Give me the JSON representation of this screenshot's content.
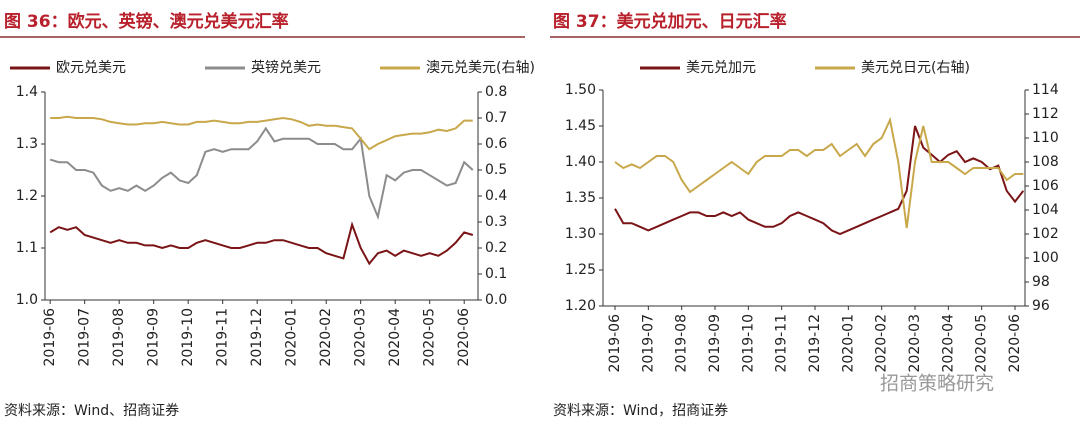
{
  "chart_data": [
    {
      "type": "line",
      "title": "图 36：欧元、英镑、澳元兑美元汇率",
      "source": "资料来源：Wind、招商证券",
      "x": [
        0,
        0.25,
        0.5,
        0.75,
        1,
        1.25,
        1.5,
        1.75,
        2,
        2.25,
        2.5,
        2.75,
        3,
        3.25,
        3.5,
        3.75,
        4,
        4.25,
        4.5,
        4.75,
        5,
        5.25,
        5.5,
        5.75,
        6,
        6.25,
        6.5,
        6.75,
        7,
        7.25,
        7.5,
        7.75,
        8,
        8.25,
        8.5,
        8.75,
        9,
        9.25,
        9.5,
        9.75,
        10,
        10.25,
        10.5,
        10.75,
        11,
        11.25,
        11.5,
        11.75,
        12,
        12.25
      ],
      "xlim": [
        -0.15,
        12.4
      ],
      "xticks": [
        {
          "value": 0,
          "label": "2019-06"
        },
        {
          "value": 1,
          "label": "2019-07"
        },
        {
          "value": 2,
          "label": "2019-08"
        },
        {
          "value": 3,
          "label": "2019-09"
        },
        {
          "value": 4,
          "label": "2019-10"
        },
        {
          "value": 5,
          "label": "2019-11"
        },
        {
          "value": 6,
          "label": "2019-12"
        },
        {
          "value": 7,
          "label": "2020-01"
        },
        {
          "value": 8,
          "label": "2020-02"
        },
        {
          "value": 9,
          "label": "2020-03"
        },
        {
          "value": 10,
          "label": "2020-04"
        },
        {
          "value": 11,
          "label": "2020-05"
        },
        {
          "value": 12,
          "label": "2020-06"
        }
      ],
      "ylim": [
        1.0,
        1.4
      ],
      "yticks": [
        {
          "value": 1.0,
          "label": "1.0"
        },
        1.1,
        1.2,
        1.3,
        1.4
      ],
      "y2lim": [
        0,
        0.8
      ],
      "y2ticks": [
        {
          "value": 0,
          "label": "0.0"
        },
        0.1,
        0.2,
        0.3,
        0.4,
        0.5,
        0.6,
        0.7,
        0.8
      ],
      "series": [
        {
          "name": "欧元兑美元",
          "color": "#7a1416",
          "values": [
            1.13,
            1.14,
            1.135,
            1.14,
            1.125,
            1.12,
            1.115,
            1.11,
            1.115,
            1.11,
            1.11,
            1.105,
            1.105,
            1.1,
            1.105,
            1.1,
            1.1,
            1.11,
            1.115,
            1.11,
            1.105,
            1.1,
            1.1,
            1.105,
            1.11,
            1.11,
            1.115,
            1.115,
            1.11,
            1.105,
            1.1,
            1.1,
            1.09,
            1.085,
            1.08,
            1.145,
            1.1,
            1.07,
            1.09,
            1.095,
            1.085,
            1.095,
            1.09,
            1.085,
            1.09,
            1.085,
            1.095,
            1.11,
            1.13,
            1.125
          ]
        },
        {
          "name": "英镑兑美元",
          "color": "#8c8c8c",
          "values": [
            1.27,
            1.265,
            1.265,
            1.25,
            1.25,
            1.245,
            1.22,
            1.21,
            1.215,
            1.21,
            1.22,
            1.21,
            1.22,
            1.235,
            1.245,
            1.23,
            1.225,
            1.24,
            1.285,
            1.29,
            1.285,
            1.29,
            1.29,
            1.29,
            1.305,
            1.33,
            1.305,
            1.31,
            1.31,
            1.31,
            1.31,
            1.3,
            1.3,
            1.3,
            1.29,
            1.29,
            1.31,
            1.2,
            1.16,
            1.24,
            1.23,
            1.245,
            1.25,
            1.25,
            1.24,
            1.23,
            1.22,
            1.225,
            1.265,
            1.25
          ]
        },
        {
          "name": "澳元兑美元(右轴)",
          "color": "#c8a84b",
          "axis": "y2",
          "values": [
            0.7,
            0.7,
            0.705,
            0.7,
            0.7,
            0.7,
            0.695,
            0.685,
            0.68,
            0.675,
            0.675,
            0.68,
            0.68,
            0.685,
            0.68,
            0.675,
            0.675,
            0.685,
            0.685,
            0.69,
            0.685,
            0.68,
            0.68,
            0.685,
            0.685,
            0.69,
            0.695,
            0.7,
            0.695,
            0.685,
            0.67,
            0.675,
            0.67,
            0.67,
            0.665,
            0.66,
            0.62,
            0.58,
            0.6,
            0.615,
            0.63,
            0.635,
            0.64,
            0.64,
            0.645,
            0.655,
            0.65,
            0.66,
            0.69,
            0.69
          ]
        }
      ]
    },
    {
      "type": "line",
      "title": "图 37：美元兑加元、日元汇率",
      "source": "资料来源：Wind，招商证券",
      "x": [
        0,
        0.25,
        0.5,
        0.75,
        1,
        1.25,
        1.5,
        1.75,
        2,
        2.25,
        2.5,
        2.75,
        3,
        3.25,
        3.5,
        3.75,
        4,
        4.25,
        4.5,
        4.75,
        5,
        5.25,
        5.5,
        5.75,
        6,
        6.25,
        6.5,
        6.75,
        7,
        7.25,
        7.5,
        7.75,
        8,
        8.25,
        8.5,
        8.75,
        9,
        9.25,
        9.5,
        9.75,
        10,
        10.25,
        10.5,
        10.75,
        11,
        11.25,
        11.5,
        11.75,
        12,
        12.25
      ],
      "xlim": [
        -0.36,
        12.3
      ],
      "xticks": [
        {
          "value": 0,
          "label": "2019-06"
        },
        {
          "value": 1,
          "label": "2019-07"
        },
        {
          "value": 2,
          "label": "2019-08"
        },
        {
          "value": 3,
          "label": "2019-09"
        },
        {
          "value": 4,
          "label": "2019-10"
        },
        {
          "value": 5,
          "label": "2019-11"
        },
        {
          "value": 6,
          "label": "2019-12"
        },
        {
          "value": 7,
          "label": "2020-01"
        },
        {
          "value": 8,
          "label": "2020-02"
        },
        {
          "value": 9,
          "label": "2020-03"
        },
        {
          "value": 10,
          "label": "2020-04"
        },
        {
          "value": 11,
          "label": "2020-05"
        },
        {
          "value": 12,
          "label": "2020-06"
        }
      ],
      "ylim": [
        1.2,
        1.5
      ],
      "yticks": [
        {
          "value": 1.2,
          "label": "1.20"
        },
        1.25,
        {
          "value": 1.3,
          "label": "1.30"
        },
        1.35,
        {
          "value": 1.4,
          "label": "1.40"
        },
        1.45,
        {
          "value": 1.5,
          "label": "1.50"
        }
      ],
      "y2lim": [
        96,
        114
      ],
      "y2ticks": [
        96,
        98,
        100,
        102,
        104,
        106,
        108,
        110,
        112,
        114
      ],
      "series": [
        {
          "name": "美元兑加元",
          "color": "#7a1416",
          "values": [
            1.335,
            1.315,
            1.315,
            1.31,
            1.305,
            1.31,
            1.315,
            1.32,
            1.325,
            1.33,
            1.33,
            1.325,
            1.325,
            1.33,
            1.325,
            1.33,
            1.32,
            1.315,
            1.31,
            1.31,
            1.315,
            1.325,
            1.33,
            1.325,
            1.32,
            1.315,
            1.305,
            1.3,
            1.305,
            1.31,
            1.315,
            1.32,
            1.325,
            1.33,
            1.335,
            1.36,
            1.45,
            1.42,
            1.41,
            1.4,
            1.41,
            1.415,
            1.4,
            1.405,
            1.4,
            1.39,
            1.395,
            1.36,
            1.345,
            1.36
          ]
        },
        {
          "name": "美元兑日元(右轴)",
          "color": "#c8a84b",
          "axis": "y2",
          "values": [
            108,
            107.5,
            107.8,
            107.5,
            108,
            108.5,
            108.5,
            108,
            106.5,
            105.5,
            106,
            106.5,
            107,
            107.5,
            108,
            107.5,
            107,
            108,
            108.5,
            108.5,
            108.5,
            109,
            109,
            108.5,
            109,
            109,
            109.5,
            108.5,
            109,
            109.5,
            108.5,
            109.5,
            110,
            111.5,
            108,
            102.5,
            108,
            111,
            108,
            108,
            108,
            107.5,
            107,
            107.5,
            107.5,
            107.5,
            107.5,
            106.5,
            107,
            107
          ]
        }
      ]
    }
  ],
  "watermark": "招商策略研究"
}
